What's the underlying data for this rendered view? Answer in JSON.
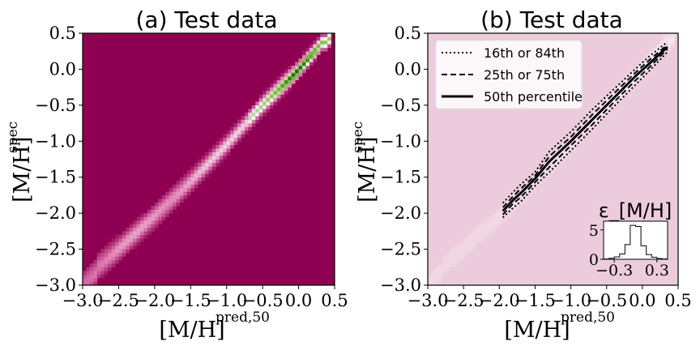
{
  "chart_data": [
    {
      "type": "heatmap",
      "title": "(a) Test data",
      "xlabel": "[M/H]",
      "xlabel_sup": "pred,50",
      "ylabel": "[M/H]",
      "ylabel_sup": "spec",
      "xlim": [
        -3.0,
        0.5
      ],
      "ylim": [
        -3.0,
        0.5
      ],
      "xticks": [
        "-3.0",
        "-2.5",
        "-2.0",
        "-1.5",
        "-1.0",
        "-0.5",
        "0.0",
        "0.5"
      ],
      "yticks": [
        "0.5",
        "0.0",
        "-0.5",
        "-1.0",
        "-1.5",
        "-2.0",
        "-2.5",
        "-3.0"
      ],
      "colormap": "PiYG",
      "background_color": "#8e0152",
      "density_ridge": [
        [
          -2.8,
          -2.75
        ],
        [
          -2.0,
          -2.05
        ],
        [
          -1.5,
          -1.55
        ],
        [
          -1.0,
          -1.05
        ],
        [
          -0.5,
          -0.5
        ],
        [
          0.0,
          0.0
        ],
        [
          0.35,
          0.4
        ]
      ]
    },
    {
      "type": "line",
      "title": "(b) Test data",
      "xlabel": "[M/H]",
      "xlabel_sup": "pred,50",
      "ylabel": "[M/H]",
      "ylabel_sup": "spec",
      "xlim": [
        -3.0,
        0.5
      ],
      "ylim": [
        -3.0,
        0.5
      ],
      "xticks": [
        "-3.0",
        "-2.5",
        "-2.0",
        "-1.5",
        "-1.0",
        "-0.5",
        "0.0",
        "0.5"
      ],
      "yticks": [
        "0.5",
        "0.0",
        "-0.5",
        "-1.0",
        "-1.5",
        "-2.0",
        "-2.5",
        "-3.0"
      ],
      "background_color": "#ecccdc",
      "legend_position": "top-left",
      "series": [
        {
          "name": "16th or 84th",
          "style": "dotted",
          "x": [
            -1.95,
            -1.8,
            -1.7,
            -1.5,
            -1.3,
            -1.0,
            -0.7,
            -0.4,
            -0.1,
            0.1,
            0.35
          ],
          "y": [
            -2.06,
            -1.92,
            -1.84,
            -1.62,
            -1.43,
            -1.13,
            -0.83,
            -0.52,
            -0.22,
            -0.02,
            0.24
          ]
        },
        {
          "name": "16th or 84th",
          "style": "dotted",
          "x": [
            -1.95,
            -1.8,
            -1.7,
            -1.5,
            -1.3,
            -1.0,
            -0.7,
            -0.4,
            -0.1,
            0.1,
            0.35
          ],
          "y": [
            -1.86,
            -1.7,
            -1.6,
            -1.43,
            -1.14,
            -0.87,
            -0.56,
            -0.28,
            0.0,
            0.18,
            0.38
          ]
        },
        {
          "name": "25th or 75th",
          "style": "dashed",
          "x": [
            -1.95,
            -1.8,
            -1.7,
            -1.5,
            -1.3,
            -1.0,
            -0.7,
            -0.4,
            -0.1,
            0.1,
            0.35
          ],
          "y": [
            -2.02,
            -1.86,
            -1.78,
            -1.57,
            -1.36,
            -1.06,
            -0.77,
            -0.46,
            -0.16,
            0.03,
            0.28
          ]
        },
        {
          "name": "25th or 75th",
          "style": "dashed",
          "x": [
            -1.95,
            -1.8,
            -1.7,
            -1.5,
            -1.3,
            -1.0,
            -0.7,
            -0.4,
            -0.1,
            0.1,
            0.35
          ],
          "y": [
            -1.92,
            -1.76,
            -1.66,
            -1.48,
            -1.21,
            -0.94,
            -0.63,
            -0.34,
            -0.05,
            0.13,
            0.34
          ]
        },
        {
          "name": "50th percentile",
          "style": "solid",
          "x": [
            -1.95,
            -1.8,
            -1.7,
            -1.5,
            -1.3,
            -1.0,
            -0.7,
            -0.4,
            -0.1,
            0.1,
            0.35
          ],
          "y": [
            -1.97,
            -1.81,
            -1.72,
            -1.52,
            -1.28,
            -1.0,
            -0.7,
            -0.4,
            -0.1,
            0.08,
            0.31
          ]
        }
      ],
      "legend": [
        {
          "label": "16th or 84th",
          "style": "dotted"
        },
        {
          "label": "25th or 75th",
          "style": "dashed"
        },
        {
          "label": "50th percentile",
          "style": "solid"
        }
      ],
      "inset": {
        "type": "histogram",
        "title": "ε_[M/H]",
        "xlim": [
          -0.45,
          0.45
        ],
        "ylim": [
          0,
          6.5
        ],
        "xticks": [
          "-0.3",
          "0.3"
        ],
        "yticks": [
          "5",
          "0"
        ],
        "bin_edges": [
          -0.45,
          -0.375,
          -0.3,
          -0.225,
          -0.15,
          -0.075,
          0.0,
          0.075,
          0.15,
          0.225,
          0.3,
          0.375,
          0.45
        ],
        "counts": [
          0.05,
          0.15,
          0.4,
          0.9,
          2.5,
          5.8,
          5.6,
          2.3,
          0.8,
          0.35,
          0.12,
          0.05
        ]
      }
    }
  ]
}
